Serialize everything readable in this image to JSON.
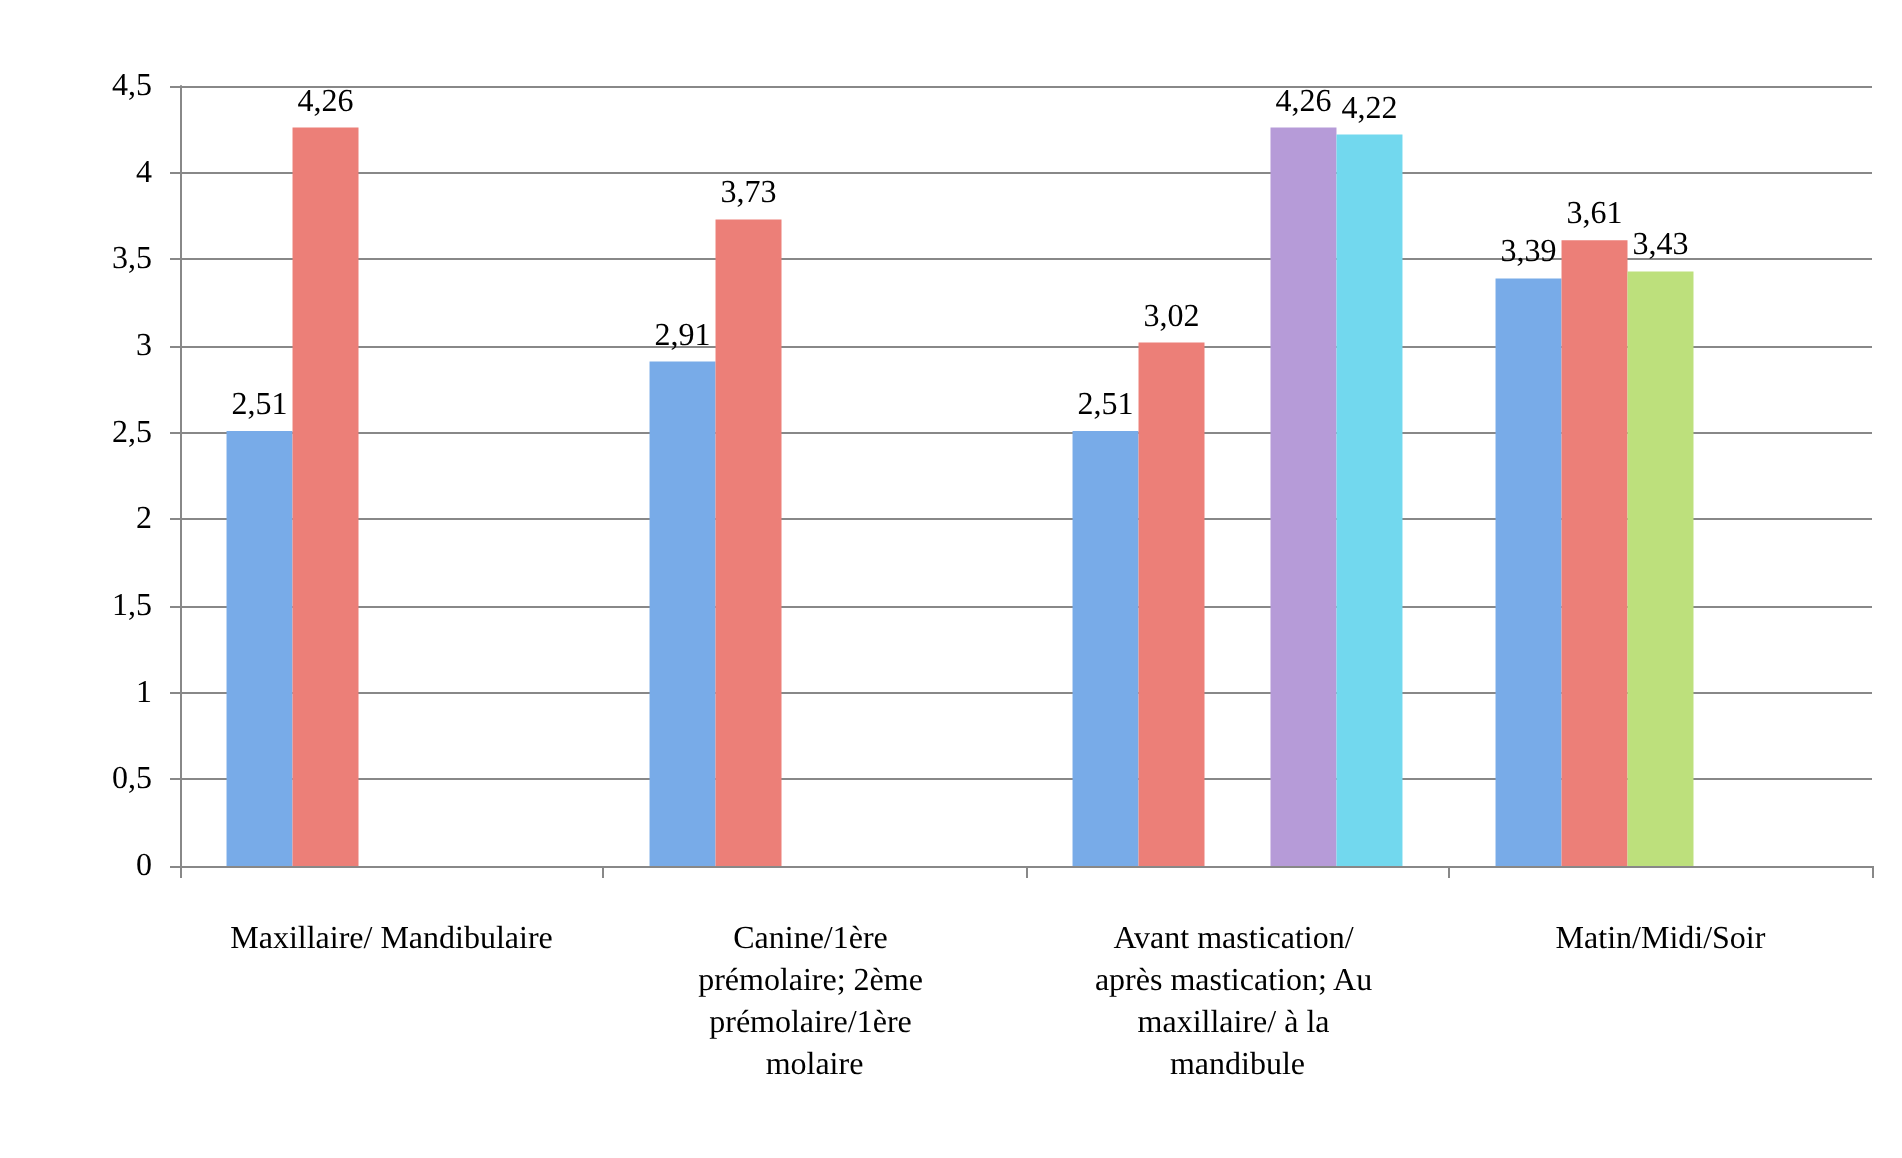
{
  "chart_data": {
    "type": "bar",
    "categories": [
      "Maxillaire/ Mandibulaire",
      "Canine/1ère prémolaire; 2ème prémolaire/1ère molaire",
      "Avant mastication/ après mastication; Au maxillaire/ à la mandibule",
      "Matin/Midi/Soir"
    ],
    "series": [
      {
        "color": "#78abe8",
        "values": [
          2.51,
          2.91,
          2.51,
          3.39
        ],
        "value_labels": [
          "2,51",
          "2,91",
          "2,51",
          "3,39"
        ]
      },
      {
        "color": "#ec7f78",
        "values": [
          4.26,
          3.73,
          3.02,
          3.61
        ],
        "value_labels": [
          "4,26",
          "3,73",
          "3,02",
          "3,61"
        ]
      },
      {
        "color": "#bde07c",
        "values": [
          null,
          null,
          null,
          3.43
        ],
        "value_labels": [
          null,
          null,
          null,
          "3,43"
        ]
      },
      {
        "color": "#b69bd8",
        "values": [
          null,
          null,
          4.26,
          null
        ],
        "value_labels": [
          null,
          null,
          "4,26",
          null
        ]
      },
      {
        "color": "#72d8ee",
        "values": [
          null,
          null,
          4.22,
          null
        ],
        "value_labels": [
          null,
          null,
          "4,22",
          null
        ]
      }
    ],
    "ylim": [
      0,
      4.5
    ],
    "yticks": [
      0,
      {
        "value": 0.5,
        "label": "0,5"
      },
      1,
      {
        "value": 1.5,
        "label": "1,5"
      },
      2,
      {
        "value": 2.5,
        "label": "2,5"
      },
      3,
      {
        "value": 3.5,
        "label": "3,5"
      },
      4,
      {
        "value": 4.5,
        "label": "4,5"
      }
    ],
    "grid": "y"
  }
}
